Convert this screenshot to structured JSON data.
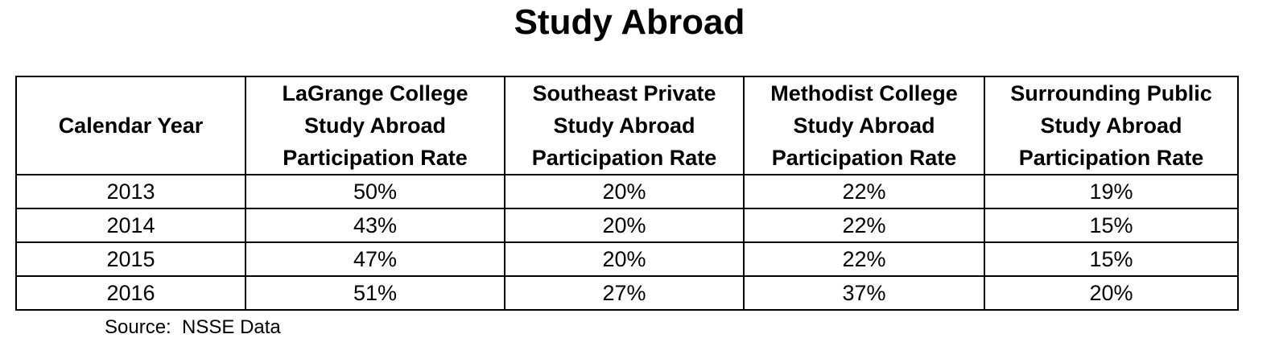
{
  "title": "Study Abroad",
  "table": {
    "headers": [
      [
        "Calendar Year"
      ],
      [
        "LaGrange College",
        "Study Abroad",
        "Participation Rate"
      ],
      [
        "Southeast Private",
        "Study Abroad",
        "Participation Rate"
      ],
      [
        "Methodist College",
        "Study Abroad",
        "Participation Rate"
      ],
      [
        "Surrounding Public",
        "Study Abroad",
        "Participation Rate"
      ]
    ],
    "rows": [
      [
        "2013",
        "50%",
        "20%",
        "22%",
        "19%"
      ],
      [
        "2014",
        "43%",
        "20%",
        "22%",
        "15%"
      ],
      [
        "2015",
        "47%",
        "20%",
        "22%",
        "15%"
      ],
      [
        "2016",
        "51%",
        "27%",
        "37%",
        "20%"
      ]
    ]
  },
  "source": "Source:  NSSE Data"
}
